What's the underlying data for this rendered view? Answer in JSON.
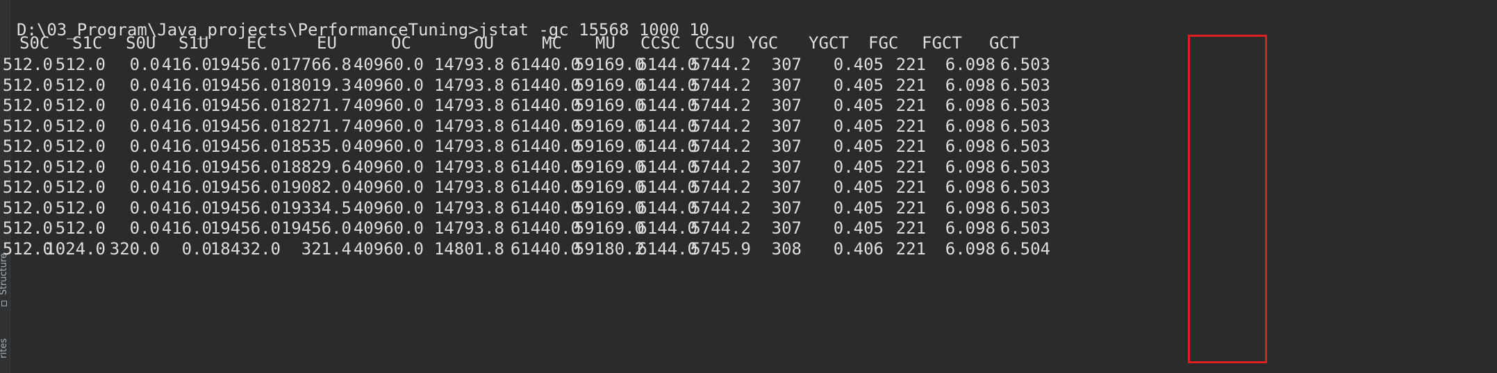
{
  "side_panel": {
    "structure_label": "Structure",
    "favorites_label": "rites"
  },
  "terminal": {
    "command_line": "D:\\03_Program\\Java_projects\\PerformanceTuning>jstat -gc 15568 1000 10",
    "columns": [
      "S0C",
      "S1C",
      "S0U",
      "S1U",
      "EC",
      "EU",
      "OC",
      "OU",
      "MC",
      "MU",
      "CCSC",
      "CCSU",
      "YGC",
      "YGCT",
      "FGC",
      "FGCT",
      "GCT"
    ],
    "rows": [
      [
        "512.0",
        "512.0",
        "0.0",
        "416.0",
        "19456.0",
        "17766.8",
        "40960.0",
        "14793.8",
        "61440.0",
        "59169.0",
        "6144.0",
        "5744.2",
        "307",
        "0.405",
        "221",
        "6.098",
        "6.503"
      ],
      [
        "512.0",
        "512.0",
        "0.0",
        "416.0",
        "19456.0",
        "18019.3",
        "40960.0",
        "14793.8",
        "61440.0",
        "59169.0",
        "6144.0",
        "5744.2",
        "307",
        "0.405",
        "221",
        "6.098",
        "6.503"
      ],
      [
        "512.0",
        "512.0",
        "0.0",
        "416.0",
        "19456.0",
        "18271.7",
        "40960.0",
        "14793.8",
        "61440.0",
        "59169.0",
        "6144.0",
        "5744.2",
        "307",
        "0.405",
        "221",
        "6.098",
        "6.503"
      ],
      [
        "512.0",
        "512.0",
        "0.0",
        "416.0",
        "19456.0",
        "18271.7",
        "40960.0",
        "14793.8",
        "61440.0",
        "59169.0",
        "6144.0",
        "5744.2",
        "307",
        "0.405",
        "221",
        "6.098",
        "6.503"
      ],
      [
        "512.0",
        "512.0",
        "0.0",
        "416.0",
        "19456.0",
        "18535.0",
        "40960.0",
        "14793.8",
        "61440.0",
        "59169.0",
        "6144.0",
        "5744.2",
        "307",
        "0.405",
        "221",
        "6.098",
        "6.503"
      ],
      [
        "512.0",
        "512.0",
        "0.0",
        "416.0",
        "19456.0",
        "18829.6",
        "40960.0",
        "14793.8",
        "61440.0",
        "59169.0",
        "6144.0",
        "5744.2",
        "307",
        "0.405",
        "221",
        "6.098",
        "6.503"
      ],
      [
        "512.0",
        "512.0",
        "0.0",
        "416.0",
        "19456.0",
        "19082.0",
        "40960.0",
        "14793.8",
        "61440.0",
        "59169.0",
        "6144.0",
        "5744.2",
        "307",
        "0.405",
        "221",
        "6.098",
        "6.503"
      ],
      [
        "512.0",
        "512.0",
        "0.0",
        "416.0",
        "19456.0",
        "19334.5",
        "40960.0",
        "14793.8",
        "61440.0",
        "59169.0",
        "6144.0",
        "5744.2",
        "307",
        "0.405",
        "221",
        "6.098",
        "6.503"
      ],
      [
        "512.0",
        "512.0",
        "0.0",
        "416.0",
        "19456.0",
        "19456.0",
        "40960.0",
        "14793.8",
        "61440.0",
        "59169.0",
        "6144.0",
        "5744.2",
        "307",
        "0.405",
        "221",
        "6.098",
        "6.503"
      ],
      [
        "512.0",
        "1024.0",
        "320.0",
        "0.0",
        "18432.0",
        "321.4",
        "40960.0",
        "14801.8",
        "61440.0",
        "59180.2",
        "6144.0",
        "5745.9",
        "308",
        "0.406",
        "221",
        "6.098",
        "6.504"
      ]
    ]
  },
  "colors": {
    "background": "#2b2b2b",
    "text": "#dedede",
    "highlight": "#e02020"
  }
}
